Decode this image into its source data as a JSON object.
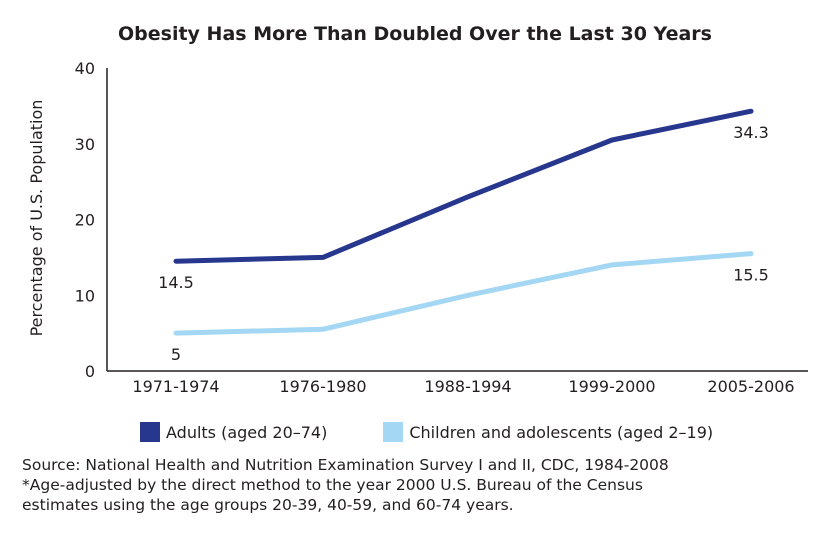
{
  "chart_data": {
    "type": "line",
    "title": "Obesity Has More Than Doubled Over the Last 30 Years",
    "xlabel": "",
    "ylabel": "Percentage of U.S. Population",
    "categories": [
      "1971-1974",
      "1976-1980",
      "1988-1994",
      "1999-2000",
      "2005-2006"
    ],
    "ylim": [
      0,
      40
    ],
    "yticks": [
      "0",
      "10",
      "20",
      "30",
      "40"
    ],
    "series": [
      {
        "name": "Adults (aged 20–74)",
        "color": "#27378d",
        "values": [
          14.5,
          15.0,
          23.0,
          30.5,
          34.3
        ]
      },
      {
        "name": "Children and adolescents (aged 2–19)",
        "color": "#a3d7f3",
        "values": [
          5.0,
          5.5,
          10.0,
          14.0,
          15.5
        ]
      }
    ],
    "annotations": [
      {
        "text": "14.5",
        "series": 0,
        "point": 0,
        "placement": "below"
      },
      {
        "text": "34.3",
        "series": 0,
        "point": 4,
        "placement": "below"
      },
      {
        "text": "5",
        "series": 1,
        "point": 0,
        "placement": "below"
      },
      {
        "text": "15.5",
        "series": 1,
        "point": 4,
        "placement": "below"
      }
    ],
    "grid": false,
    "legend_position": "bottom"
  },
  "footnotes": {
    "source": "Source: National Health and Nutrition Examination Survey I and II, CDC, 1984-2008",
    "note_line1": "*Age-adjusted by the direct method to the year 2000 U.S. Bureau of the Census",
    "note_line2": "estimates using the age groups 20-39, 40-59, and 60-74 years."
  }
}
